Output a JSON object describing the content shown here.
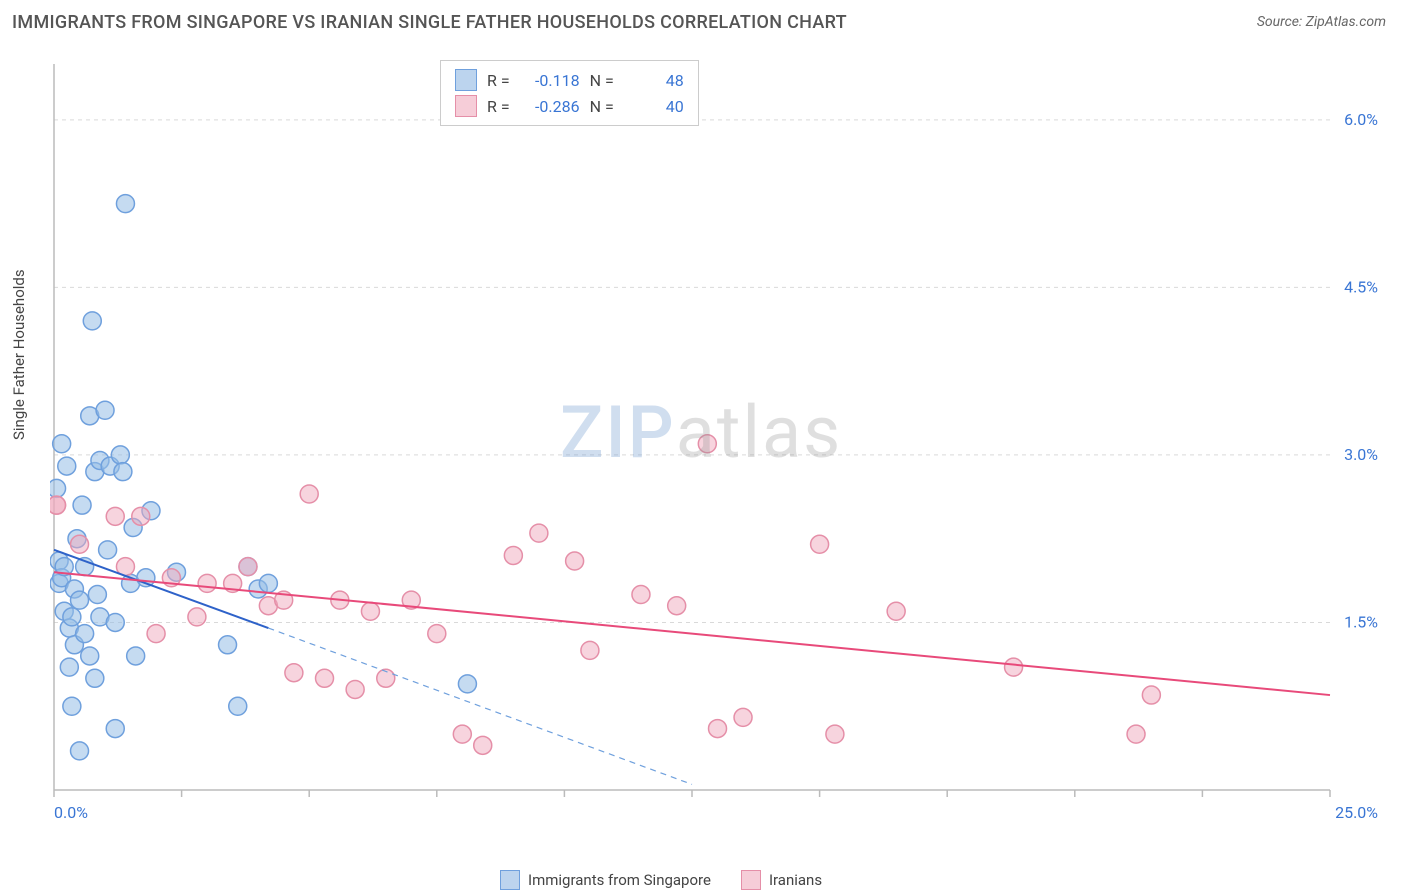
{
  "header": {
    "title": "IMMIGRANTS FROM SINGAPORE VS IRANIAN SINGLE FATHER HOUSEHOLDS CORRELATION CHART",
    "source_label": "Source:",
    "source_value": "ZipAtlas.com"
  },
  "ylabel": "Single Father Households",
  "watermark": {
    "part1": "ZIP",
    "part2": "atlas"
  },
  "chart": {
    "type": "scatter",
    "xlim": [
      0,
      25
    ],
    "ylim": [
      0,
      6.5
    ],
    "x_axis_min_label": "0.0%",
    "x_axis_max_label": "25.0%",
    "y_ticks": [
      1.5,
      3.0,
      4.5,
      6.0
    ],
    "y_tick_labels": [
      "1.5%",
      "3.0%",
      "4.5%",
      "6.0%"
    ],
    "x_minor_tick_step": 2.5,
    "grid_color": "#d9d9d9",
    "axis_color": "#bbbbbb",
    "background_color": "#ffffff",
    "axis_label_color": "#3975d4",
    "marker_radius": 9,
    "marker_stroke_width": 1.5,
    "trend_line_width": 2
  },
  "legend_top": {
    "rows": [
      {
        "swatch_fill": "#bcd4ee",
        "swatch_stroke": "#6fa0dd",
        "r_label": "R =",
        "r_value": "-0.118",
        "n_label": "N =",
        "n_value": "48"
      },
      {
        "swatch_fill": "#f6cdd8",
        "swatch_stroke": "#e58fa8",
        "r_label": "R =",
        "r_value": "-0.286",
        "n_label": "N =",
        "n_value": "40"
      }
    ]
  },
  "legend_bottom": {
    "items": [
      {
        "swatch_fill": "#bcd4ee",
        "swatch_stroke": "#6fa0dd",
        "label": "Immigrants from Singapore"
      },
      {
        "swatch_fill": "#f6cdd8",
        "swatch_stroke": "#e58fa8",
        "label": "Iranians"
      }
    ]
  },
  "series": [
    {
      "name": "Immigrants from Singapore",
      "fill": "rgba(150,190,230,0.55)",
      "stroke": "#6fa0dd",
      "trend_color": "#2e62c9",
      "trend_dash_color": "#6fa0dd",
      "trend": {
        "x1": 0,
        "y1": 2.15,
        "x2": 4.2,
        "y2": 1.45,
        "extend_x": 12.5,
        "extend_y": 0.05
      },
      "points": [
        [
          0.05,
          2.7
        ],
        [
          0.1,
          2.05
        ],
        [
          0.1,
          1.85
        ],
        [
          0.15,
          3.1
        ],
        [
          0.15,
          1.9
        ],
        [
          0.2,
          1.6
        ],
        [
          0.2,
          2.0
        ],
        [
          0.25,
          2.9
        ],
        [
          0.3,
          1.45
        ],
        [
          0.3,
          1.1
        ],
        [
          0.35,
          0.75
        ],
        [
          0.35,
          1.55
        ],
        [
          0.4,
          1.3
        ],
        [
          0.4,
          1.8
        ],
        [
          0.45,
          2.25
        ],
        [
          0.5,
          1.7
        ],
        [
          0.5,
          0.35
        ],
        [
          0.55,
          2.55
        ],
        [
          0.6,
          1.4
        ],
        [
          0.6,
          2.0
        ],
        [
          0.7,
          3.35
        ],
        [
          0.7,
          1.2
        ],
        [
          0.75,
          4.2
        ],
        [
          0.8,
          2.85
        ],
        [
          0.8,
          1.0
        ],
        [
          0.85,
          1.75
        ],
        [
          0.9,
          2.95
        ],
        [
          0.9,
          1.55
        ],
        [
          1.0,
          3.4
        ],
        [
          1.05,
          2.15
        ],
        [
          1.1,
          2.9
        ],
        [
          1.2,
          1.5
        ],
        [
          1.2,
          0.55
        ],
        [
          1.3,
          3.0
        ],
        [
          1.35,
          2.85
        ],
        [
          1.4,
          5.25
        ],
        [
          1.5,
          1.85
        ],
        [
          1.55,
          2.35
        ],
        [
          1.6,
          1.2
        ],
        [
          1.8,
          1.9
        ],
        [
          1.9,
          2.5
        ],
        [
          2.4,
          1.95
        ],
        [
          3.4,
          1.3
        ],
        [
          3.6,
          0.75
        ],
        [
          3.8,
          2.0
        ],
        [
          4.0,
          1.8
        ],
        [
          4.2,
          1.85
        ],
        [
          8.1,
          0.95
        ]
      ]
    },
    {
      "name": "Iranians",
      "fill": "rgba(240,170,190,0.5)",
      "stroke": "#e58fa8",
      "trend_color": "#e84a7a",
      "trend": {
        "x1": 0,
        "y1": 1.95,
        "x2": 25,
        "y2": 0.85
      },
      "points": [
        [
          0.05,
          2.55
        ],
        [
          0.05,
          2.55
        ],
        [
          0.5,
          2.2
        ],
        [
          1.2,
          2.45
        ],
        [
          1.4,
          2.0
        ],
        [
          1.7,
          2.45
        ],
        [
          2.0,
          1.4
        ],
        [
          2.3,
          1.9
        ],
        [
          2.8,
          1.55
        ],
        [
          3.0,
          1.85
        ],
        [
          3.5,
          1.85
        ],
        [
          3.8,
          2.0
        ],
        [
          4.2,
          1.65
        ],
        [
          4.5,
          1.7
        ],
        [
          4.7,
          1.05
        ],
        [
          5.0,
          2.65
        ],
        [
          5.3,
          1.0
        ],
        [
          5.6,
          1.7
        ],
        [
          5.9,
          0.9
        ],
        [
          6.2,
          1.6
        ],
        [
          6.5,
          1.0
        ],
        [
          7.0,
          1.7
        ],
        [
          7.5,
          1.4
        ],
        [
          8.0,
          0.5
        ],
        [
          8.4,
          0.4
        ],
        [
          9.0,
          2.1
        ],
        [
          9.5,
          2.3
        ],
        [
          10.2,
          2.05
        ],
        [
          10.5,
          1.25
        ],
        [
          11.5,
          1.75
        ],
        [
          12.2,
          1.65
        ],
        [
          12.8,
          3.1
        ],
        [
          13.0,
          0.55
        ],
        [
          13.5,
          0.65
        ],
        [
          15.0,
          2.2
        ],
        [
          15.3,
          0.5
        ],
        [
          16.5,
          1.6
        ],
        [
          18.8,
          1.1
        ],
        [
          21.2,
          0.5
        ],
        [
          21.5,
          0.85
        ]
      ]
    }
  ]
}
